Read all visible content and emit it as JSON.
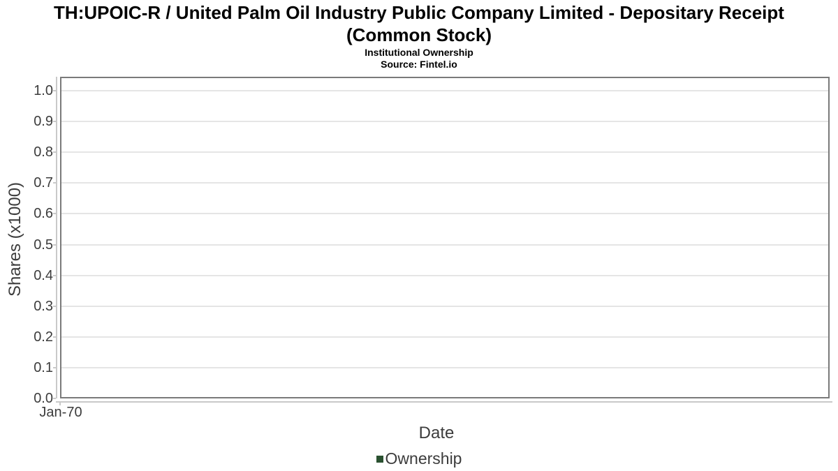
{
  "chart_data": {
    "type": "line",
    "title": "TH:UPOIC-R / United Palm Oil Industry Public Company Limited - Depositary Receipt (Common Stock)",
    "title_line1": "TH:UPOIC-R / United Palm Oil Industry Public Company Limited - Depositary Receipt",
    "title_line2": "(Common Stock)",
    "subtitle": "Institutional Ownership",
    "source": "Source: Fintel.io",
    "xlabel": "Date",
    "ylabel": "Shares (x1000)",
    "ylim": [
      0.0,
      1.045
    ],
    "y_ticks": [
      "0.0",
      "0.1",
      "0.2",
      "0.3",
      "0.4",
      "0.5",
      "0.6",
      "0.7",
      "0.8",
      "0.9",
      "1.0"
    ],
    "x_ticks": [
      "Jan-70"
    ],
    "grid": true,
    "legend": {
      "position": "bottom",
      "entries": [
        {
          "label": "Ownership",
          "color": "#2a5130"
        }
      ]
    },
    "series": [
      {
        "name": "Ownership",
        "color": "#2a5130",
        "values": []
      }
    ],
    "colors": {
      "plot_border": "#7a7a7a",
      "gridline": "#e5e5e5",
      "axis_line": "#c9c9c9",
      "tick_text": "#3c3c3c",
      "title_text": "#000000"
    }
  }
}
